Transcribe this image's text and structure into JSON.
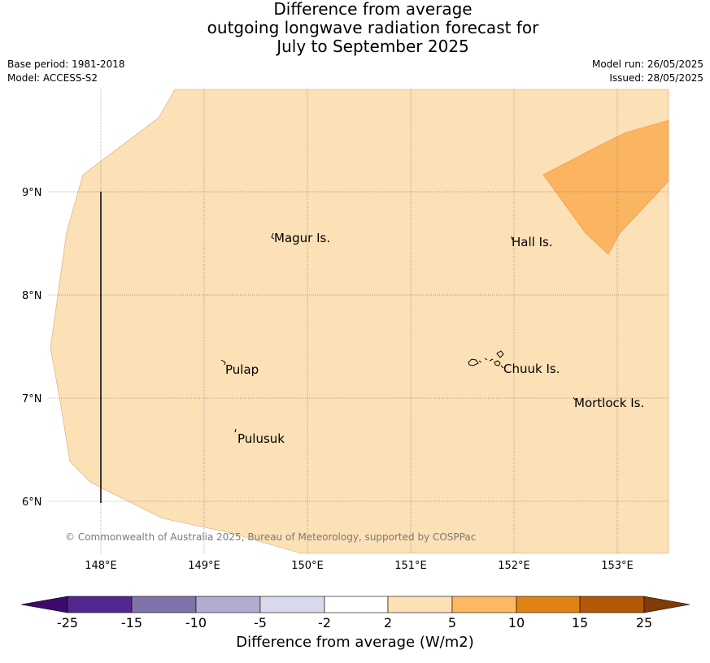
{
  "title": {
    "line1": "Difference from average",
    "line2": "outgoing longwave radiation forecast for",
    "line3": "July to September 2025"
  },
  "meta": {
    "base_period": "Base period: 1981-2018",
    "model": "Model: ACCESS-S2",
    "model_run": "Model run: 26/05/2025",
    "issued": "Issued: 28/05/2025"
  },
  "map": {
    "lat_labels": [
      "9°N",
      "8°N",
      "7°N",
      "6°N"
    ],
    "lon_labels": [
      "148°E",
      "149°E",
      "150°E",
      "151°E",
      "152°E",
      "153°E"
    ],
    "places": [
      {
        "name": "Magur Is."
      },
      {
        "name": "Hall Is."
      },
      {
        "name": "Pulap"
      },
      {
        "name": "Chuuk Is."
      },
      {
        "name": "Mortlock Is."
      },
      {
        "name": "Pulusuk"
      }
    ],
    "copyright": "© Commonwealth of Australia 2025, Bureau of Meteorology, supported by COSPPac",
    "colors": {
      "light_band": "#fce0b6",
      "orange_band": "#fbb561",
      "ocean": "#ffffff"
    }
  },
  "colorbar": {
    "tick_labels": [
      "-25",
      "-15",
      "-10",
      "-5",
      "-2",
      "2",
      "5",
      "10",
      "15",
      "25"
    ],
    "colors": [
      "#3f0b6b",
      "#54278f",
      "#8073ac",
      "#b2abd2",
      "#d8daeb",
      "#ffffff",
      "#fee0b6",
      "#fdb863",
      "#e08214",
      "#b35806",
      "#7f3b08"
    ],
    "label": "Difference from average (W/m2)"
  }
}
